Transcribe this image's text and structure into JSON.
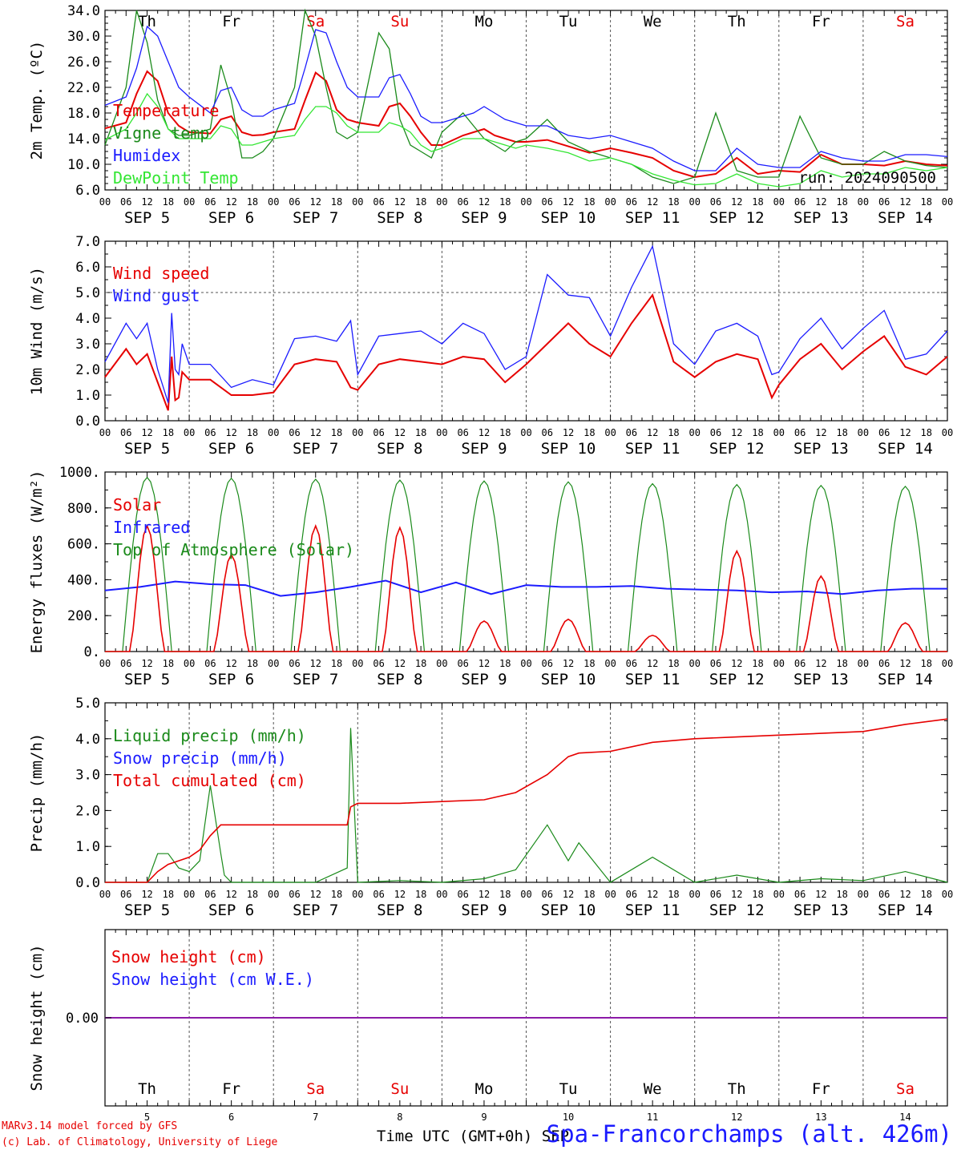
{
  "days": [
    "SEP 5",
    "SEP 6",
    "SEP 7",
    "SEP 8",
    "SEP 9",
    "SEP 10",
    "SEP 11",
    "SEP 12",
    "SEP 13",
    "SEP 14"
  ],
  "hour_ticks": [
    "00",
    "06",
    "12",
    "18"
  ],
  "weekdays": [
    {
      "label": "Th",
      "color": "#000000"
    },
    {
      "label": "Fr",
      "color": "#000000"
    },
    {
      "label": "Sa",
      "color": "#e60000"
    },
    {
      "label": "Su",
      "color": "#e60000"
    },
    {
      "label": "Mo",
      "color": "#000000"
    },
    {
      "label": "Tu",
      "color": "#000000"
    },
    {
      "label": "We",
      "color": "#000000"
    },
    {
      "label": "Th",
      "color": "#000000"
    },
    {
      "label": "Fr",
      "color": "#000000"
    },
    {
      "label": "Sa",
      "color": "#e60000"
    }
  ],
  "bottom_day_numbers": [
    "5",
    "6",
    "7",
    "8",
    "9",
    "10",
    "11",
    "12",
    "13",
    "14"
  ],
  "xlabel": "Time UTC (GMT+0h) SEP",
  "credits": [
    "MARv3.14 model forced by GFS",
    "(c) Lab. of Climatology, University of Liege"
  ],
  "station": "Spa-Francorchamps (alt. 426m)",
  "run_label": "run: 2024090500",
  "colors": {
    "red": "#e60000",
    "green": "#1a8a1a",
    "blue": "#1b1bff",
    "lightgreen": "#33e633",
    "purple": "#8c1aa8"
  },
  "chart_data": [
    {
      "type": "line",
      "ylabel": "2m Temp. (ºC)",
      "yticks": [
        "34.0",
        "30.0",
        "26.0",
        "22.0",
        "18.0",
        "14.0",
        "10.0",
        "6.0"
      ],
      "ylim": [
        6,
        34
      ],
      "x_hours": [
        0,
        6,
        9,
        12,
        15,
        18,
        21,
        24,
        30,
        33,
        36,
        39,
        42,
        45,
        48,
        54,
        57,
        60,
        63,
        66,
        69,
        72,
        78,
        81,
        84,
        87,
        90,
        93,
        96,
        102,
        105,
        108,
        111,
        114,
        117,
        120,
        126,
        132,
        138,
        144,
        150,
        156,
        162,
        168,
        174,
        180,
        186,
        192,
        198,
        204,
        210,
        216,
        222,
        228,
        234,
        240
      ],
      "series": [
        {
          "name": "Temperature",
          "color": "#e60000",
          "values": [
            15.6,
            16.5,
            21.0,
            24.5,
            23.0,
            18.0,
            16.0,
            15.0,
            14.8,
            17.0,
            17.5,
            15.0,
            14.5,
            14.6,
            15.0,
            15.5,
            20.0,
            24.3,
            23.0,
            18.5,
            17.0,
            16.5,
            16.0,
            19.0,
            19.5,
            17.5,
            15.0,
            13.0,
            13.0,
            14.5,
            15.0,
            15.5,
            14.5,
            14.0,
            13.5,
            13.5,
            13.8,
            12.8,
            11.8,
            12.5,
            11.8,
            11.0,
            9.0,
            8.0,
            8.5,
            11.0,
            8.5,
            9.0,
            8.8,
            11.5,
            10.0,
            10.0,
            9.8,
            10.5,
            10.0,
            9.8
          ]
        },
        {
          "name": "Vigne temp",
          "color": "#1a8a1a",
          "values": [
            13.0,
            22.0,
            34.0,
            29.0,
            20.0,
            15.5,
            14.5,
            14.5,
            15.5,
            25.5,
            20.0,
            11.0,
            11.0,
            12.0,
            14.0,
            22.0,
            34.0,
            30.0,
            22.0,
            15.0,
            14.0,
            15.0,
            30.5,
            28.0,
            17.0,
            13.0,
            12.0,
            11.0,
            15.0,
            18.0,
            16.0,
            14.0,
            13.0,
            12.0,
            13.5,
            14.0,
            17.0,
            13.5,
            12.0,
            11.0,
            10.0,
            8.0,
            7.0,
            8.0,
            18.0,
            9.0,
            8.0,
            8.0,
            17.5,
            11.0,
            10.0,
            10.0,
            12.0,
            10.5,
            9.8,
            9.5
          ]
        },
        {
          "name": "Humidex",
          "color": "#1b1bff",
          "values": [
            19.2,
            20.5,
            25.0,
            31.5,
            30.0,
            26.0,
            22.0,
            20.5,
            18.0,
            21.5,
            22.0,
            18.5,
            17.5,
            17.5,
            18.5,
            19.5,
            25.0,
            31.0,
            30.5,
            26.0,
            22.0,
            20.5,
            20.5,
            23.5,
            24.0,
            21.0,
            17.5,
            16.5,
            16.5,
            17.5,
            18.0,
            19.0,
            18.0,
            17.0,
            16.5,
            16.0,
            16.0,
            14.5,
            14.0,
            14.5,
            13.5,
            12.5,
            10.5,
            9.0,
            9.0,
            12.5,
            10.0,
            9.5,
            9.5,
            12.0,
            11.0,
            10.5,
            10.5,
            11.5,
            11.5,
            11.2
          ]
        },
        {
          "name": "DewPoint Temp",
          "color": "#33e633",
          "values": [
            13.8,
            15.5,
            18.0,
            21.0,
            19.0,
            15.5,
            14.0,
            14.0,
            14.0,
            16.0,
            15.5,
            13.0,
            13.0,
            13.5,
            14.0,
            14.5,
            17.0,
            19.0,
            19.0,
            18.0,
            16.0,
            15.0,
            15.0,
            16.5,
            16.0,
            15.0,
            13.0,
            12.0,
            12.5,
            14.0,
            14.0,
            14.0,
            13.5,
            13.0,
            12.5,
            13.0,
            12.5,
            11.8,
            10.5,
            11.0,
            10.0,
            8.5,
            7.5,
            6.8,
            7.0,
            8.5,
            7.0,
            6.5,
            7.0,
            9.0,
            8.0,
            8.5,
            8.5,
            9.5,
            9.0,
            9.5
          ]
        }
      ]
    },
    {
      "type": "line",
      "ylabel": "10m Wind (m/s)",
      "yticks": [
        "7.0",
        "6.0",
        "5.0",
        "4.0",
        "3.0",
        "2.0",
        "1.0",
        "0.0"
      ],
      "ylim": [
        0,
        7
      ],
      "reference_line": 5.0,
      "x_hours": [
        0,
        6,
        9,
        12,
        15,
        18,
        19,
        20,
        21,
        22,
        24,
        30,
        36,
        42,
        48,
        54,
        60,
        66,
        70,
        72,
        78,
        84,
        90,
        96,
        102,
        108,
        114,
        120,
        126,
        132,
        138,
        144,
        150,
        156,
        162,
        168,
        174,
        180,
        186,
        190,
        192,
        198,
        204,
        210,
        216,
        222,
        228,
        234,
        240
      ],
      "series": [
        {
          "name": "Wind speed",
          "color": "#e60000",
          "values": [
            1.7,
            2.8,
            2.2,
            2.6,
            1.5,
            0.4,
            2.5,
            0.8,
            0.9,
            1.9,
            1.6,
            1.6,
            1.0,
            1.0,
            1.1,
            2.2,
            2.4,
            2.3,
            1.3,
            1.2,
            2.2,
            2.4,
            2.3,
            2.2,
            2.5,
            2.4,
            1.5,
            2.2,
            3.0,
            3.8,
            3.0,
            2.5,
            3.8,
            4.9,
            2.3,
            1.7,
            2.3,
            2.6,
            2.4,
            0.9,
            1.4,
            2.4,
            3.0,
            2.0,
            2.7,
            3.3,
            2.1,
            1.8,
            2.5
          ]
        },
        {
          "name": "Wind gust",
          "color": "#1b1bff",
          "values": [
            2.3,
            3.8,
            3.2,
            3.8,
            2.0,
            0.7,
            4.2,
            2.0,
            1.8,
            3.0,
            2.2,
            2.2,
            1.3,
            1.6,
            1.4,
            3.2,
            3.3,
            3.1,
            3.9,
            1.8,
            3.3,
            3.4,
            3.5,
            3.0,
            3.8,
            3.4,
            2.0,
            2.5,
            5.7,
            4.9,
            4.8,
            3.3,
            5.2,
            6.8,
            3.0,
            2.2,
            3.5,
            3.8,
            3.3,
            1.8,
            1.9,
            3.2,
            4.0,
            2.8,
            3.6,
            4.3,
            2.4,
            2.6,
            3.5
          ]
        }
      ]
    },
    {
      "type": "line",
      "ylabel": "Energy fluxes (W/m²)",
      "yticks": [
        "1000.",
        "800.",
        "600.",
        "400.",
        "200.",
        "0."
      ],
      "ylim": [
        0,
        1000
      ],
      "series": [
        {
          "name": "Solar",
          "color": "#e60000",
          "day_peaks": [
            700,
            540,
            700,
            690,
            170,
            180,
            90,
            560,
            420,
            160
          ]
        },
        {
          "name": "Infrared",
          "color": "#1b1bff",
          "values_approx": [
            340,
            360,
            390,
            375,
            370,
            310,
            330,
            360,
            395,
            330,
            385,
            320,
            370,
            360,
            360,
            365,
            350,
            345,
            340,
            330,
            335,
            320,
            340,
            350,
            350
          ]
        },
        {
          "name": "Top of Atmosphere (Solar)",
          "color": "#1a8a1a",
          "day_peaks": [
            970,
            965,
            960,
            955,
            950,
            945,
            935,
            930,
            925,
            920
          ]
        }
      ]
    },
    {
      "type": "line",
      "ylabel": "Precip (mm/h)",
      "yticks": [
        "5.0",
        "4.0",
        "3.0",
        "2.0",
        "1.0",
        "0.0"
      ],
      "ylim": [
        0,
        5
      ],
      "x_hours": [
        0,
        12,
        15,
        18,
        21,
        24,
        27,
        30,
        33,
        34,
        36,
        48,
        60,
        69,
        70,
        72,
        84,
        96,
        108,
        117,
        126,
        132,
        135,
        144,
        156,
        168,
        180,
        192,
        204,
        216,
        228,
        240
      ],
      "series": [
        {
          "name": "Liquid precip (mm/h)",
          "color": "#1a8a1a",
          "values": [
            0.0,
            0.0,
            0.8,
            0.8,
            0.4,
            0.3,
            0.6,
            2.7,
            0.8,
            0.2,
            0.0,
            0.0,
            0.0,
            0.4,
            4.3,
            0.0,
            0.05,
            0.0,
            0.1,
            0.35,
            1.6,
            0.6,
            1.1,
            0.0,
            0.7,
            0.0,
            0.2,
            0.0,
            0.1,
            0.05,
            0.3,
            0.0
          ]
        },
        {
          "name": "Snow precip (mm/h)",
          "color": "#1b1bff",
          "values": []
        },
        {
          "name": "Total cumulated (cm)",
          "color": "#e60000",
          "values": [
            0.0,
            0.0,
            0.3,
            0.5,
            0.6,
            0.7,
            0.9,
            1.3,
            1.6,
            1.6,
            1.6,
            1.6,
            1.6,
            1.6,
            2.1,
            2.2,
            2.2,
            2.25,
            2.3,
            2.5,
            3.0,
            3.5,
            3.6,
            3.65,
            3.9,
            4.0,
            4.05,
            4.1,
            4.15,
            4.2,
            4.4,
            4.55
          ]
        }
      ]
    },
    {
      "type": "line",
      "ylabel": "Snow height (cm)",
      "yticks": [
        "0.00"
      ],
      "series": [
        {
          "name": "Snow height (cm)",
          "color": "#e60000",
          "values": [
            0,
            0
          ]
        },
        {
          "name": "Snow height (cm W.E.)",
          "color": "#1b1bff",
          "values": [
            0,
            0
          ]
        }
      ]
    }
  ]
}
